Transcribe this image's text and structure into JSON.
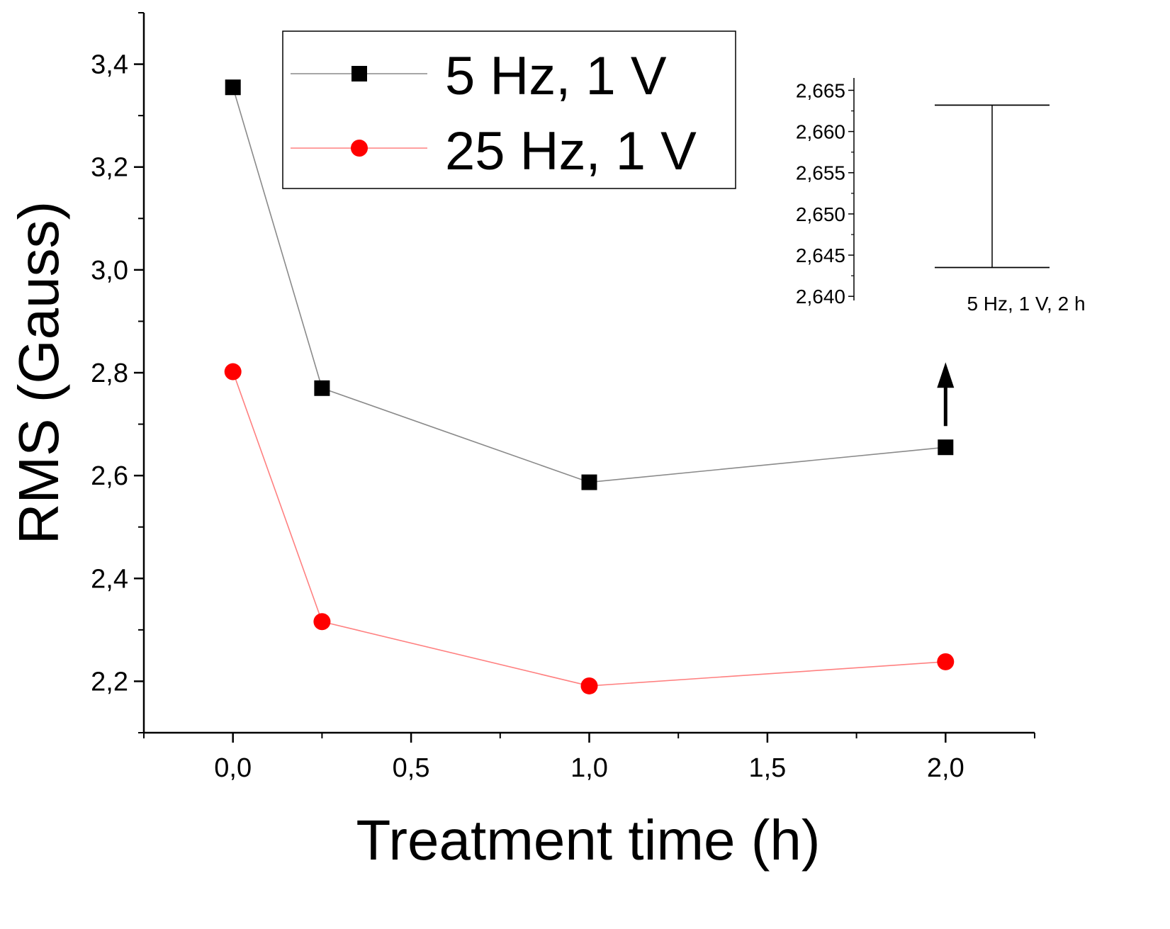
{
  "chart_data": [
    {
      "type": "line",
      "title": "",
      "xlabel": "Treatment time (h)",
      "ylabel": "RMS (Gauss)",
      "xlim": [
        -0.25,
        2.25
      ],
      "ylim": [
        2.1,
        3.5
      ],
      "xticks": [
        0.0,
        0.5,
        1.0,
        1.5,
        2.0
      ],
      "xtick_labels": [
        "0,0",
        "0,5",
        "1,0",
        "1,5",
        "2,0"
      ],
      "yticks": [
        2.2,
        2.4,
        2.6,
        2.8,
        3.0,
        3.2,
        3.4
      ],
      "ytick_labels": [
        "2,2",
        "2,4",
        "2,6",
        "2,8",
        "3,0",
        "3,2",
        "3,4"
      ],
      "grid": false,
      "legend_position": "top-center",
      "series": [
        {
          "name": "5 Hz, 1 V",
          "color": "#000000",
          "line_color": "#8a8a8a",
          "marker": "square",
          "x": [
            0.0,
            0.25,
            1.0,
            2.0
          ],
          "y": [
            3.355,
            2.77,
            2.587,
            2.655
          ]
        },
        {
          "name": "25 Hz, 1 V",
          "color": "#ff0000",
          "line_color": "#ff8080",
          "marker": "circle",
          "x": [
            0.0,
            0.25,
            1.0,
            2.0
          ],
          "y": [
            2.802,
            2.316,
            2.191,
            2.238
          ]
        }
      ],
      "annotations": [
        {
          "type": "arrow",
          "at_x": 2.0,
          "direction": "up",
          "points_to": "inset"
        }
      ]
    },
    {
      "type": "errorbar",
      "title": "",
      "category": "5 Hz, 1 V, 2 h",
      "ylim": [
        2.6395,
        2.6665
      ],
      "yticks": [
        2.64,
        2.645,
        2.65,
        2.655,
        2.66,
        2.665
      ],
      "ytick_labels": [
        "2,640",
        "2,645",
        "2,650",
        "2,655",
        "2,660",
        "2,665"
      ],
      "error_range": [
        2.6435,
        2.6632
      ]
    }
  ]
}
